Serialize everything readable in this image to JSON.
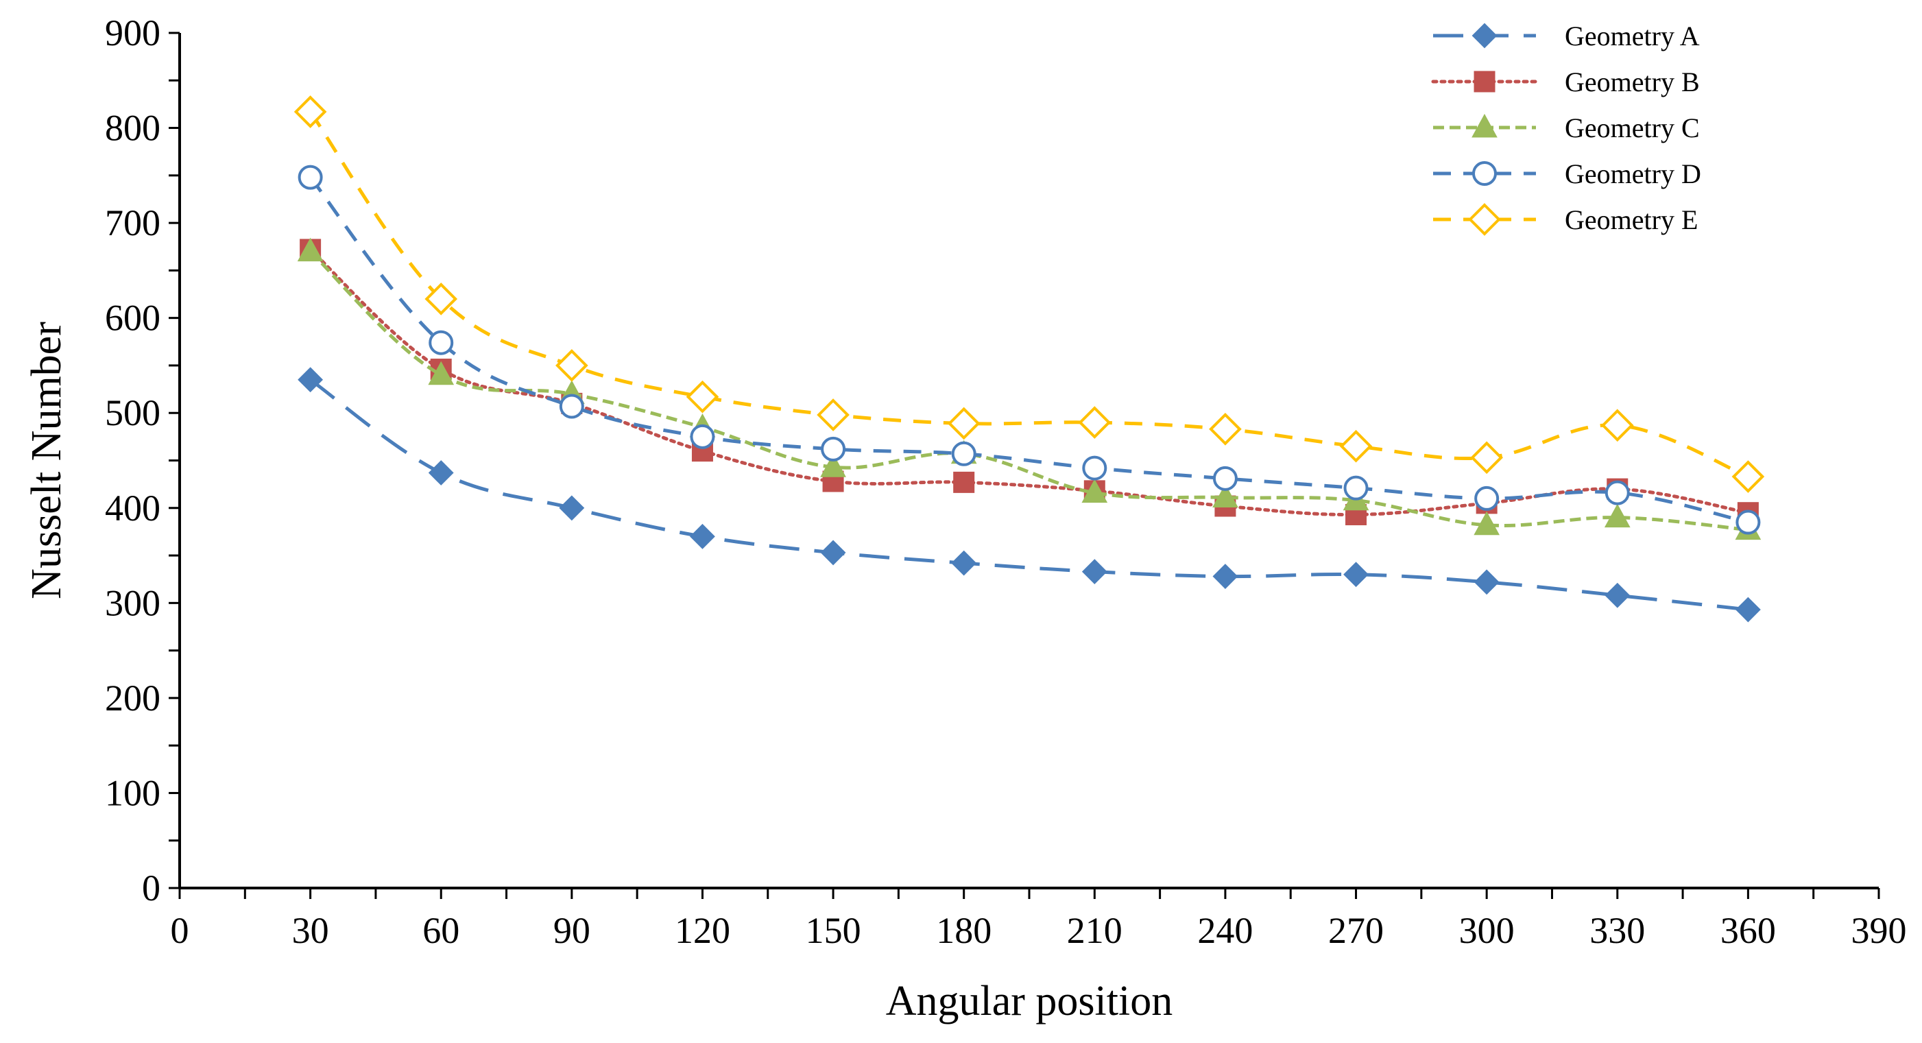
{
  "chart_data": {
    "type": "line",
    "title": "",
    "xlabel": "Angular position",
    "ylabel": "Nusselt Number",
    "xlim": [
      0,
      390
    ],
    "ylim": [
      0,
      900
    ],
    "xticks": [
      0,
      30,
      60,
      90,
      120,
      150,
      180,
      210,
      240,
      270,
      300,
      330,
      360,
      390
    ],
    "yticks": [
      0,
      100,
      200,
      300,
      400,
      500,
      600,
      700,
      800,
      900
    ],
    "grid": false,
    "legend_position": "top-right",
    "x": [
      30,
      60,
      90,
      120,
      150,
      180,
      210,
      240,
      270,
      300,
      330,
      360
    ],
    "series": [
      {
        "name": "Geometry A",
        "color": "#4A7EBB",
        "line_style": "long-dash",
        "marker": "diamond-filled",
        "values": [
          535,
          437,
          400,
          370,
          353,
          342,
          333,
          328,
          330,
          322,
          308,
          293
        ]
      },
      {
        "name": "Geometry B",
        "color": "#C0504D",
        "line_style": "dotted",
        "marker": "square-filled",
        "values": [
          672,
          546,
          510,
          460,
          428,
          427,
          418,
          402,
          393,
          405,
          420,
          395
        ]
      },
      {
        "name": "Geometry C",
        "color": "#9BBB59",
        "line_style": "short-dash",
        "marker": "triangle-filled",
        "values": [
          670,
          540,
          520,
          485,
          443,
          457,
          416,
          411,
          408,
          382,
          390,
          377
        ]
      },
      {
        "name": "Geometry D",
        "color": "#4A7EBB",
        "line_style": "dash",
        "marker": "circle-open",
        "values": [
          748,
          574,
          507,
          475,
          462,
          457,
          442,
          431,
          421,
          410,
          416,
          385
        ]
      },
      {
        "name": "Geometry E",
        "color": "#FFC000",
        "line_style": "dash",
        "marker": "diamond-open",
        "values": [
          817,
          620,
          550,
          517,
          498,
          489,
          490,
          483,
          465,
          453,
          487,
          433
        ]
      }
    ]
  }
}
